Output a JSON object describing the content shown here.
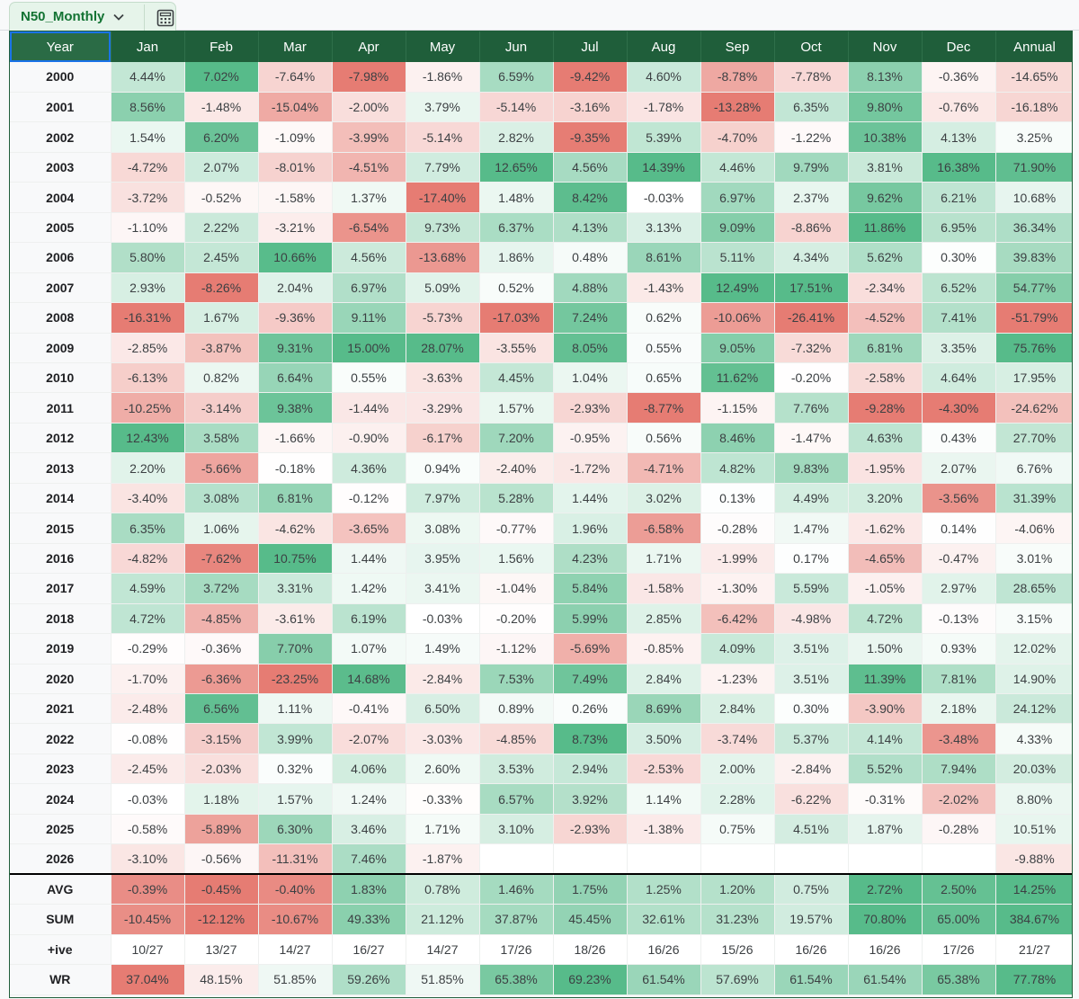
{
  "sheet_tab": {
    "name": "N50_Monthly",
    "dropdown_icon": "chevron-down-icon",
    "calc_icon": "calculator-icon"
  },
  "headers": [
    "Year",
    "Jan",
    "Feb",
    "Mar",
    "Apr",
    "May",
    "Jun",
    "Jul",
    "Aug",
    "Sep",
    "Oct",
    "Nov",
    "Dec",
    "Annual"
  ],
  "rows": [
    {
      "year": "2000",
      "values": [
        "4.44%",
        "7.02%",
        "-7.64%",
        "-7.98%",
        "-1.86%",
        "6.59%",
        "-9.42%",
        "4.60%",
        "-8.78%",
        "-7.78%",
        "8.13%",
        "-0.36%",
        "-14.65%"
      ]
    },
    {
      "year": "2001",
      "values": [
        "8.56%",
        "-1.48%",
        "-15.04%",
        "-2.00%",
        "3.79%",
        "-5.14%",
        "-3.16%",
        "-1.78%",
        "-13.28%",
        "6.35%",
        "9.80%",
        "-0.76%",
        "-16.18%"
      ]
    },
    {
      "year": "2002",
      "values": [
        "1.54%",
        "6.20%",
        "-1.09%",
        "-3.99%",
        "-5.14%",
        "2.82%",
        "-9.35%",
        "5.39%",
        "-4.70%",
        "-1.22%",
        "10.38%",
        "4.13%",
        "3.25%"
      ]
    },
    {
      "year": "2003",
      "values": [
        "-4.72%",
        "2.07%",
        "-8.01%",
        "-4.51%",
        "7.79%",
        "12.65%",
        "4.56%",
        "14.39%",
        "4.46%",
        "9.79%",
        "3.81%",
        "16.38%",
        "71.90%"
      ]
    },
    {
      "year": "2004",
      "values": [
        "-3.72%",
        "-0.52%",
        "-1.58%",
        "1.37%",
        "-17.40%",
        "1.48%",
        "8.42%",
        "-0.03%",
        "6.97%",
        "2.37%",
        "9.62%",
        "6.21%",
        "10.68%"
      ]
    },
    {
      "year": "2005",
      "values": [
        "-1.10%",
        "2.22%",
        "-3.21%",
        "-6.54%",
        "9.73%",
        "6.37%",
        "4.13%",
        "3.13%",
        "9.09%",
        "-8.86%",
        "11.86%",
        "6.95%",
        "36.34%"
      ]
    },
    {
      "year": "2006",
      "values": [
        "5.80%",
        "2.45%",
        "10.66%",
        "4.56%",
        "-13.68%",
        "1.86%",
        "0.48%",
        "8.61%",
        "5.11%",
        "4.34%",
        "5.62%",
        "0.30%",
        "39.83%"
      ]
    },
    {
      "year": "2007",
      "values": [
        "2.93%",
        "-8.26%",
        "2.04%",
        "6.97%",
        "5.09%",
        "0.52%",
        "4.88%",
        "-1.43%",
        "12.49%",
        "17.51%",
        "-2.34%",
        "6.52%",
        "54.77%"
      ]
    },
    {
      "year": "2008",
      "values": [
        "-16.31%",
        "1.67%",
        "-9.36%",
        "9.11%",
        "-5.73%",
        "-17.03%",
        "7.24%",
        "0.62%",
        "-10.06%",
        "-26.41%",
        "-4.52%",
        "7.41%",
        "-51.79%"
      ]
    },
    {
      "year": "2009",
      "values": [
        "-2.85%",
        "-3.87%",
        "9.31%",
        "15.00%",
        "28.07%",
        "-3.55%",
        "8.05%",
        "0.55%",
        "9.05%",
        "-7.32%",
        "6.81%",
        "3.35%",
        "75.76%"
      ]
    },
    {
      "year": "2010",
      "values": [
        "-6.13%",
        "0.82%",
        "6.64%",
        "0.55%",
        "-3.63%",
        "4.45%",
        "1.04%",
        "0.65%",
        "11.62%",
        "-0.20%",
        "-2.58%",
        "4.64%",
        "17.95%"
      ]
    },
    {
      "year": "2011",
      "values": [
        "-10.25%",
        "-3.14%",
        "9.38%",
        "-1.44%",
        "-3.29%",
        "1.57%",
        "-2.93%",
        "-8.77%",
        "-1.15%",
        "7.76%",
        "-9.28%",
        "-4.30%",
        "-24.62%"
      ]
    },
    {
      "year": "2012",
      "values": [
        "12.43%",
        "3.58%",
        "-1.66%",
        "-0.90%",
        "-6.17%",
        "7.20%",
        "-0.95%",
        "0.56%",
        "8.46%",
        "-1.47%",
        "4.63%",
        "0.43%",
        "27.70%"
      ]
    },
    {
      "year": "2013",
      "values": [
        "2.20%",
        "-5.66%",
        "-0.18%",
        "4.36%",
        "0.94%",
        "-2.40%",
        "-1.72%",
        "-4.71%",
        "4.82%",
        "9.83%",
        "-1.95%",
        "2.07%",
        "6.76%"
      ]
    },
    {
      "year": "2014",
      "values": [
        "-3.40%",
        "3.08%",
        "6.81%",
        "-0.12%",
        "7.97%",
        "5.28%",
        "1.44%",
        "3.02%",
        "0.13%",
        "4.49%",
        "3.20%",
        "-3.56%",
        "31.39%"
      ]
    },
    {
      "year": "2015",
      "values": [
        "6.35%",
        "1.06%",
        "-4.62%",
        "-3.65%",
        "3.08%",
        "-0.77%",
        "1.96%",
        "-6.58%",
        "-0.28%",
        "1.47%",
        "-1.62%",
        "0.14%",
        "-4.06%"
      ]
    },
    {
      "year": "2016",
      "values": [
        "-4.82%",
        "-7.62%",
        "10.75%",
        "1.44%",
        "3.95%",
        "1.56%",
        "4.23%",
        "1.71%",
        "-1.99%",
        "0.17%",
        "-4.65%",
        "-0.47%",
        "3.01%"
      ]
    },
    {
      "year": "2017",
      "values": [
        "4.59%",
        "3.72%",
        "3.31%",
        "1.42%",
        "3.41%",
        "-1.04%",
        "5.84%",
        "-1.58%",
        "-1.30%",
        "5.59%",
        "-1.05%",
        "2.97%",
        "28.65%"
      ]
    },
    {
      "year": "2018",
      "values": [
        "4.72%",
        "-4.85%",
        "-3.61%",
        "6.19%",
        "-0.03%",
        "-0.20%",
        "5.99%",
        "2.85%",
        "-6.42%",
        "-4.98%",
        "4.72%",
        "-0.13%",
        "3.15%"
      ]
    },
    {
      "year": "2019",
      "values": [
        "-0.29%",
        "-0.36%",
        "7.70%",
        "1.07%",
        "1.49%",
        "-1.12%",
        "-5.69%",
        "-0.85%",
        "4.09%",
        "3.51%",
        "1.50%",
        "0.93%",
        "12.02%"
      ]
    },
    {
      "year": "2020",
      "values": [
        "-1.70%",
        "-6.36%",
        "-23.25%",
        "14.68%",
        "-2.84%",
        "7.53%",
        "7.49%",
        "2.84%",
        "-1.23%",
        "3.51%",
        "11.39%",
        "7.81%",
        "14.90%"
      ]
    },
    {
      "year": "2021",
      "values": [
        "-2.48%",
        "6.56%",
        "1.11%",
        "-0.41%",
        "6.50%",
        "0.89%",
        "0.26%",
        "8.69%",
        "2.84%",
        "0.30%",
        "-3.90%",
        "2.18%",
        "24.12%"
      ]
    },
    {
      "year": "2022",
      "values": [
        "-0.08%",
        "-3.15%",
        "3.99%",
        "-2.07%",
        "-3.03%",
        "-4.85%",
        "8.73%",
        "3.50%",
        "-3.74%",
        "5.37%",
        "4.14%",
        "-3.48%",
        "4.33%"
      ]
    },
    {
      "year": "2023",
      "values": [
        "-2.45%",
        "-2.03%",
        "0.32%",
        "4.06%",
        "2.60%",
        "3.53%",
        "2.94%",
        "-2.53%",
        "2.00%",
        "-2.84%",
        "5.52%",
        "7.94%",
        "20.03%"
      ]
    },
    {
      "year": "2024",
      "values": [
        "-0.03%",
        "1.18%",
        "1.57%",
        "1.24%",
        "-0.33%",
        "6.57%",
        "3.92%",
        "1.14%",
        "2.28%",
        "-6.22%",
        "-0.31%",
        "-2.02%",
        "8.80%"
      ]
    },
    {
      "year": "2025",
      "values": [
        "-0.58%",
        "-5.89%",
        "6.30%",
        "3.46%",
        "1.71%",
        "3.10%",
        "-2.93%",
        "-1.38%",
        "0.75%",
        "4.51%",
        "1.87%",
        "-0.28%",
        "10.51%"
      ]
    },
    {
      "year": "2026",
      "values": [
        "-3.10%",
        "-0.56%",
        "-11.31%",
        "7.46%",
        "-1.87%",
        "",
        "",
        "",
        "",
        "",
        "",
        "",
        "-9.88%"
      ]
    }
  ],
  "summary_rows": [
    {
      "label": "AVG",
      "values": [
        "-0.39%",
        "-0.45%",
        "-0.40%",
        "1.83%",
        "0.78%",
        "1.46%",
        "1.75%",
        "1.25%",
        "1.20%",
        "0.75%",
        "2.72%",
        "2.50%",
        "14.25%"
      ]
    },
    {
      "label": "SUM",
      "values": [
        "-10.45%",
        "-12.12%",
        "-10.67%",
        "49.33%",
        "21.12%",
        "37.87%",
        "45.45%",
        "32.61%",
        "31.23%",
        "19.57%",
        "70.80%",
        "65.00%",
        "384.67%"
      ]
    },
    {
      "label": "+ive",
      "values": [
        "10/27",
        "13/27",
        "14/27",
        "16/27",
        "14/27",
        "17/26",
        "18/26",
        "16/26",
        "15/26",
        "16/26",
        "16/26",
        "17/26",
        "21/27"
      ]
    },
    {
      "label": "WR",
      "values": [
        "37.04%",
        "48.15%",
        "51.85%",
        "59.26%",
        "51.85%",
        "65.38%",
        "69.23%",
        "61.54%",
        "57.69%",
        "61.54%",
        "61.54%",
        "65.38%",
        "77.78%"
      ]
    }
  ],
  "colors": {
    "header_bg": "#1f5e3a",
    "header_text": "#ffffff",
    "tab_bg": "#e6f4ea",
    "tab_text": "#137333",
    "positive_max": "#57bb8a",
    "negative_max": "#e67c73",
    "neutral": "#ffffff",
    "selection": "#1a73e8"
  }
}
